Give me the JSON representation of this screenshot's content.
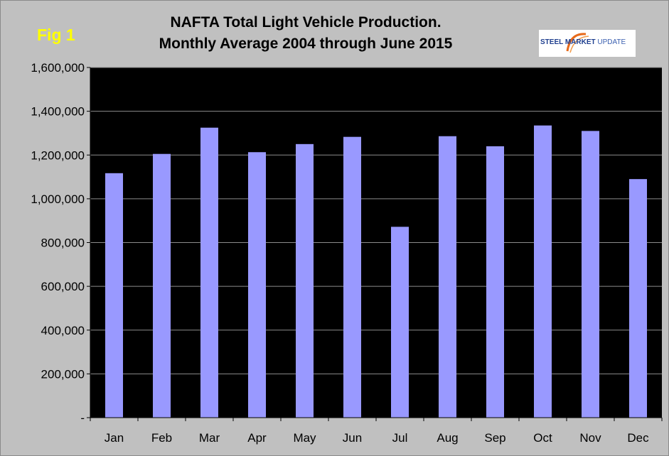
{
  "figure_label": "Fig 1",
  "logo": {
    "primary": "STEEL MARKET",
    "secondary": "UPDATE",
    "icon": "swoosh-arc-icon"
  },
  "colors": {
    "background": "#c0c0c0",
    "plot_area": "#000000",
    "bar": "#9999ff",
    "gridline": "#8c8c8c",
    "fig_label": "#ffff00"
  },
  "chart_data": {
    "type": "bar",
    "title": "NAFTA Total Light Vehicle Production.",
    "subtitle": "Monthly Average 2004 through June 2015",
    "xlabel": "",
    "ylabel": "",
    "categories": [
      "Jan",
      "Feb",
      "Mar",
      "Apr",
      "May",
      "Jun",
      "Jul",
      "Aug",
      "Sep",
      "Oct",
      "Nov",
      "Dec"
    ],
    "values": [
      1117000,
      1205000,
      1325000,
      1213000,
      1250000,
      1283000,
      872000,
      1286000,
      1240000,
      1335000,
      1310000,
      1090000
    ],
    "ylim": [
      0,
      1600000
    ],
    "yticks": [
      0,
      200000,
      400000,
      600000,
      800000,
      1000000,
      1200000,
      1400000,
      1600000
    ],
    "ytick_labels": [
      "-",
      "200,000",
      "400,000",
      "600,000",
      "800,000",
      "1,000,000",
      "1,200,000",
      "1,400,000",
      "1,600,000"
    ],
    "grid": true,
    "legend": "none"
  }
}
